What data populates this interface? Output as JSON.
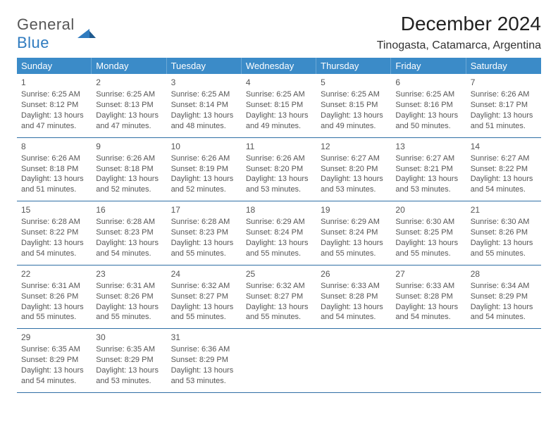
{
  "logo": {
    "text1": "General",
    "text2": "Blue"
  },
  "title": "December 2024",
  "location": "Tinogasta, Catamarca, Argentina",
  "colors": {
    "header_bg": "#3b8bc8",
    "header_text": "#ffffff",
    "rule": "#2f6fa5",
    "body_text": "#565656",
    "logo_gray": "#565656",
    "logo_blue": "#2f7bbf"
  },
  "dow": [
    "Sunday",
    "Monday",
    "Tuesday",
    "Wednesday",
    "Thursday",
    "Friday",
    "Saturday"
  ],
  "weeks": [
    [
      {
        "n": "1",
        "sr": "6:25 AM",
        "ss": "8:12 PM",
        "dl": "13 hours and 47 minutes."
      },
      {
        "n": "2",
        "sr": "6:25 AM",
        "ss": "8:13 PM",
        "dl": "13 hours and 47 minutes."
      },
      {
        "n": "3",
        "sr": "6:25 AM",
        "ss": "8:14 PM",
        "dl": "13 hours and 48 minutes."
      },
      {
        "n": "4",
        "sr": "6:25 AM",
        "ss": "8:15 PM",
        "dl": "13 hours and 49 minutes."
      },
      {
        "n": "5",
        "sr": "6:25 AM",
        "ss": "8:15 PM",
        "dl": "13 hours and 49 minutes."
      },
      {
        "n": "6",
        "sr": "6:25 AM",
        "ss": "8:16 PM",
        "dl": "13 hours and 50 minutes."
      },
      {
        "n": "7",
        "sr": "6:26 AM",
        "ss": "8:17 PM",
        "dl": "13 hours and 51 minutes."
      }
    ],
    [
      {
        "n": "8",
        "sr": "6:26 AM",
        "ss": "8:18 PM",
        "dl": "13 hours and 51 minutes."
      },
      {
        "n": "9",
        "sr": "6:26 AM",
        "ss": "8:18 PM",
        "dl": "13 hours and 52 minutes."
      },
      {
        "n": "10",
        "sr": "6:26 AM",
        "ss": "8:19 PM",
        "dl": "13 hours and 52 minutes."
      },
      {
        "n": "11",
        "sr": "6:26 AM",
        "ss": "8:20 PM",
        "dl": "13 hours and 53 minutes."
      },
      {
        "n": "12",
        "sr": "6:27 AM",
        "ss": "8:20 PM",
        "dl": "13 hours and 53 minutes."
      },
      {
        "n": "13",
        "sr": "6:27 AM",
        "ss": "8:21 PM",
        "dl": "13 hours and 53 minutes."
      },
      {
        "n": "14",
        "sr": "6:27 AM",
        "ss": "8:22 PM",
        "dl": "13 hours and 54 minutes."
      }
    ],
    [
      {
        "n": "15",
        "sr": "6:28 AM",
        "ss": "8:22 PM",
        "dl": "13 hours and 54 minutes."
      },
      {
        "n": "16",
        "sr": "6:28 AM",
        "ss": "8:23 PM",
        "dl": "13 hours and 54 minutes."
      },
      {
        "n": "17",
        "sr": "6:28 AM",
        "ss": "8:23 PM",
        "dl": "13 hours and 55 minutes."
      },
      {
        "n": "18",
        "sr": "6:29 AM",
        "ss": "8:24 PM",
        "dl": "13 hours and 55 minutes."
      },
      {
        "n": "19",
        "sr": "6:29 AM",
        "ss": "8:24 PM",
        "dl": "13 hours and 55 minutes."
      },
      {
        "n": "20",
        "sr": "6:30 AM",
        "ss": "8:25 PM",
        "dl": "13 hours and 55 minutes."
      },
      {
        "n": "21",
        "sr": "6:30 AM",
        "ss": "8:26 PM",
        "dl": "13 hours and 55 minutes."
      }
    ],
    [
      {
        "n": "22",
        "sr": "6:31 AM",
        "ss": "8:26 PM",
        "dl": "13 hours and 55 minutes."
      },
      {
        "n": "23",
        "sr": "6:31 AM",
        "ss": "8:26 PM",
        "dl": "13 hours and 55 minutes."
      },
      {
        "n": "24",
        "sr": "6:32 AM",
        "ss": "8:27 PM",
        "dl": "13 hours and 55 minutes."
      },
      {
        "n": "25",
        "sr": "6:32 AM",
        "ss": "8:27 PM",
        "dl": "13 hours and 55 minutes."
      },
      {
        "n": "26",
        "sr": "6:33 AM",
        "ss": "8:28 PM",
        "dl": "13 hours and 54 minutes."
      },
      {
        "n": "27",
        "sr": "6:33 AM",
        "ss": "8:28 PM",
        "dl": "13 hours and 54 minutes."
      },
      {
        "n": "28",
        "sr": "6:34 AM",
        "ss": "8:29 PM",
        "dl": "13 hours and 54 minutes."
      }
    ],
    [
      {
        "n": "29",
        "sr": "6:35 AM",
        "ss": "8:29 PM",
        "dl": "13 hours and 54 minutes."
      },
      {
        "n": "30",
        "sr": "6:35 AM",
        "ss": "8:29 PM",
        "dl": "13 hours and 53 minutes."
      },
      {
        "n": "31",
        "sr": "6:36 AM",
        "ss": "8:29 PM",
        "dl": "13 hours and 53 minutes."
      },
      null,
      null,
      null,
      null
    ]
  ],
  "labels": {
    "sunrise": "Sunrise: ",
    "sunset": "Sunset: ",
    "daylight": "Daylight: "
  }
}
